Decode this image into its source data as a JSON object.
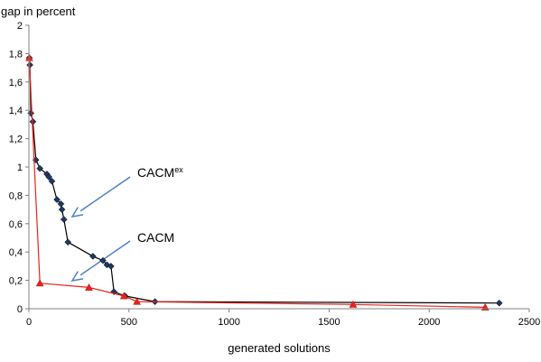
{
  "chart_data": {
    "type": "scatter",
    "title": "",
    "xlabel": "generated solutions",
    "ylabel": "gap in percent",
    "xlim": [
      0,
      2500
    ],
    "ylim": [
      0,
      2
    ],
    "x_ticks": [
      "0",
      "500",
      "1000",
      "1500",
      "2000",
      "2500"
    ],
    "y_ticks": [
      "0",
      "0,2",
      "0,4",
      "0,6",
      "0,8",
      "1",
      "1,2",
      "1,4",
      "1,6",
      "1,8",
      "2"
    ],
    "grid": false,
    "legend": "none",
    "series": [
      {
        "name": "CACMex",
        "color": "#000000",
        "marker_color": "#1f3864",
        "marker": "diamond",
        "x": [
          2,
          5,
          10,
          20,
          35,
          55,
          90,
          100,
          115,
          140,
          160,
          165,
          175,
          195,
          320,
          370,
          390,
          410,
          425,
          480,
          630,
          2350
        ],
        "y": [
          1.77,
          1.72,
          1.38,
          1.32,
          1.05,
          0.99,
          0.95,
          0.93,
          0.9,
          0.77,
          0.74,
          0.7,
          0.63,
          0.47,
          0.37,
          0.34,
          0.31,
          0.3,
          0.12,
          0.09,
          0.05,
          0.04
        ]
      },
      {
        "name": "CACM",
        "color": "#e8231c",
        "marker_color": "#e8231c",
        "marker": "triangle",
        "x": [
          2,
          55,
          300,
          475,
          540,
          1620,
          2280
        ],
        "y": [
          1.77,
          0.18,
          0.15,
          0.09,
          0.05,
          0.03,
          0.01
        ]
      }
    ],
    "annotations": [
      {
        "base": "CACM",
        "sup": "ex",
        "target": "CACMex"
      },
      {
        "base": "CACM",
        "sup": "",
        "target": "CACM"
      }
    ],
    "arrow_color": "#4f81bd"
  }
}
